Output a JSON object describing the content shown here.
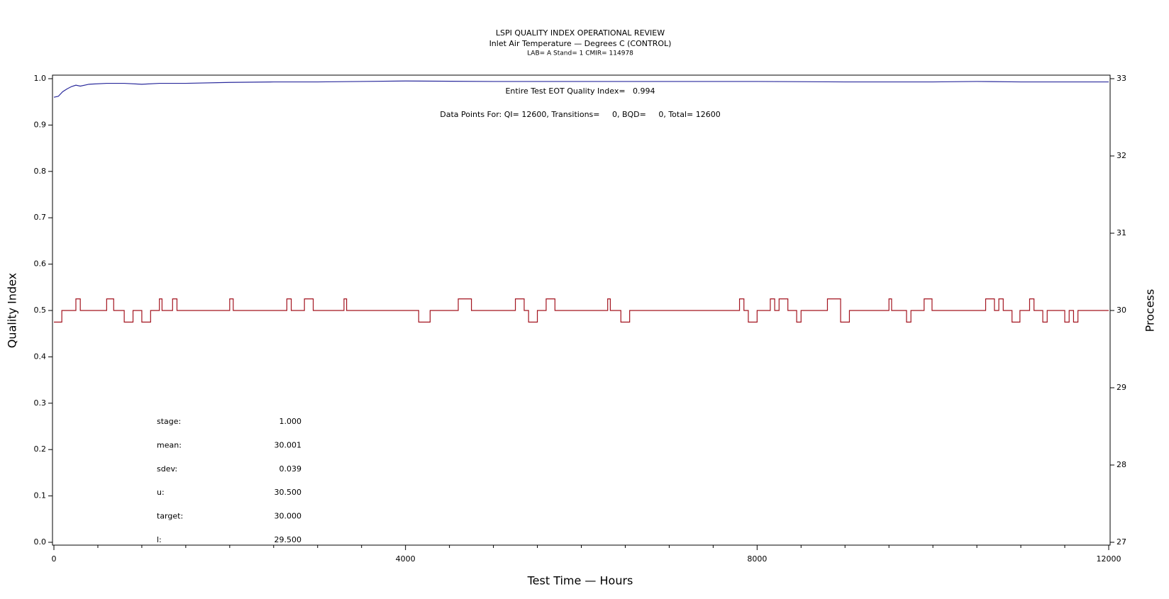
{
  "chart_data": {
    "type": "line",
    "title": "LSPI QUALITY INDEX OPERATIONAL REVIEW",
    "subtitle": "Inlet Air Temperature — Degrees C (CONTROL)",
    "subtitle2": "LAB= A Stand= 1 CMIR= 114978",
    "annotations": [
      "Entire Test EOT Quality Index=   0.994",
      "Data Points For: QI= 12600, Transitions=     0, BQD=     0, Total= 12600"
    ],
    "stats": [
      {
        "label": "stage:",
        "value": "1.000"
      },
      {
        "label": "mean:",
        "value": "30.001"
      },
      {
        "label": "sdev:",
        "value": "0.039"
      },
      {
        "label": "u:",
        "value": "30.500"
      },
      {
        "label": "target:",
        "value": "30.000"
      },
      {
        "label": "l:",
        "value": "29.500"
      }
    ],
    "xlabel": "Test Time — Hours",
    "ylabel": "Quality Index",
    "y2label": "Process",
    "xlim": [
      0,
      12000
    ],
    "xticks": [
      0,
      4000,
      8000,
      12000
    ],
    "xminorticks": [
      500,
      1000,
      1500,
      2000,
      2500,
      3000,
      3500,
      4500,
      5000,
      5500,
      6000,
      6500,
      7000,
      7500,
      8500,
      9000,
      9500,
      10000,
      10500,
      11000,
      11500
    ],
    "ylim": [
      0,
      1
    ],
    "yticks": [
      {
        "value": 0,
        "label": "0.0"
      },
      0.1,
      0.2,
      0.3,
      0.4,
      0.5,
      0.6,
      0.7,
      0.8,
      0.9,
      {
        "value": 1,
        "label": "1.0"
      }
    ],
    "y2lim": [
      27,
      33
    ],
    "y2ticks": [
      27,
      28,
      29,
      30,
      31,
      32,
      33
    ],
    "series": [
      {
        "name": "Quality Index",
        "color": "#2a2a9c",
        "x": [
          0,
          50,
          100,
          150,
          200,
          250,
          300,
          400,
          600,
          800,
          1000,
          1200,
          1500,
          2000,
          2500,
          3000,
          4000,
          5000,
          6000,
          7000,
          8000,
          9000,
          10000,
          10500,
          11000,
          12000
        ],
        "values": [
          0.96,
          0.962,
          0.972,
          0.978,
          0.983,
          0.986,
          0.984,
          0.988,
          0.99,
          0.99,
          0.988,
          0.99,
          0.99,
          0.992,
          0.993,
          0.993,
          0.995,
          0.994,
          0.994,
          0.994,
          0.994,
          0.993,
          0.993,
          0.994,
          0.993,
          0.993
        ]
      },
      {
        "name": "Process",
        "color": "#a3141f",
        "axis": "y2",
        "x": [
          0,
          90,
          90,
          250,
          250,
          300,
          300,
          600,
          600,
          680,
          680,
          800,
          800,
          900,
          900,
          1000,
          1000,
          1100,
          1100,
          1200,
          1200,
          1230,
          1230,
          1350,
          1350,
          1400,
          1400,
          2000,
          2000,
          2040,
          2040,
          2650,
          2650,
          2700,
          2700,
          2850,
          2850,
          2950,
          2950,
          3300,
          3300,
          3330,
          3330,
          4150,
          4150,
          4280,
          4280,
          4600,
          4600,
          4750,
          4750,
          5250,
          5250,
          5350,
          5350,
          5400,
          5400,
          5500,
          5500,
          5600,
          5600,
          5700,
          5700,
          6300,
          6300,
          6330,
          6330,
          6450,
          6450,
          6550,
          6550,
          7800,
          7800,
          7850,
          7850,
          7900,
          7900,
          8000,
          8000,
          8150,
          8150,
          8200,
          8200,
          8250,
          8250,
          8350,
          8350,
          8450,
          8450,
          8500,
          8500,
          8800,
          8800,
          8950,
          8950,
          8950,
          8950,
          9050,
          9050,
          9500,
          9500,
          9530,
          9530,
          9700,
          9700,
          9750,
          9750,
          9900,
          9900,
          9990,
          9990,
          10600,
          10600,
          10700,
          10700,
          10750,
          10750,
          10800,
          10800,
          10900,
          10900,
          10990,
          10990,
          11100,
          11100,
          11150,
          11150,
          11250,
          11250,
          11300,
          11300,
          11500,
          11500,
          11550,
          11550,
          11600,
          11600,
          11650,
          11650,
          12000
        ],
        "values": [
          29.85,
          29.85,
          30,
          30,
          30.15,
          30.15,
          30,
          30,
          30.15,
          30.15,
          30,
          30,
          29.85,
          29.85,
          30,
          30,
          29.85,
          29.85,
          30,
          30,
          30.15,
          30.15,
          30,
          30,
          30.15,
          30.15,
          30,
          30,
          30.15,
          30.15,
          30,
          30,
          30.15,
          30.15,
          30,
          30,
          30.15,
          30.15,
          30,
          30,
          30.15,
          30.15,
          30,
          30,
          29.85,
          29.85,
          30,
          30,
          30.15,
          30.15,
          30,
          30,
          30.15,
          30.15,
          30,
          30,
          29.85,
          29.85,
          30,
          30,
          30.15,
          30.15,
          30,
          30,
          30.15,
          30.15,
          30,
          30,
          29.85,
          29.85,
          30,
          30,
          30.15,
          30.15,
          30,
          30,
          29.85,
          29.85,
          30,
          30,
          30.15,
          30.15,
          30,
          30,
          30.15,
          30.15,
          30,
          30,
          29.85,
          29.85,
          30,
          30,
          30.15,
          30.15,
          30,
          30,
          29.85,
          29.85,
          30,
          30,
          30.15,
          30.15,
          30,
          30,
          29.85,
          29.85,
          30,
          30,
          30.15,
          30.15,
          30,
          30,
          30.15,
          30.15,
          30,
          30,
          30.15,
          30.15,
          30,
          30,
          29.85,
          29.85,
          30,
          30,
          30.15,
          30.15,
          30,
          30,
          29.85,
          29.85,
          30,
          30,
          29.85,
          29.85,
          30,
          30,
          29.85,
          29.85,
          30,
          30
        ]
      }
    ]
  }
}
